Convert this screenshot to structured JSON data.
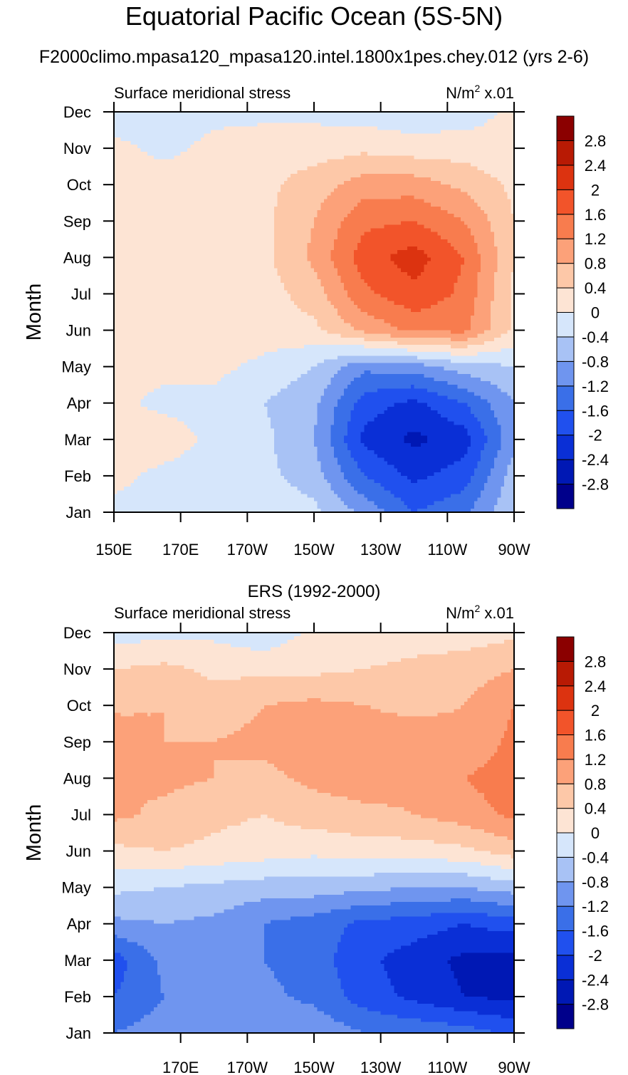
{
  "title": "Equatorial Pacific Ocean (5S-5N)",
  "subtitle": "F2000climo.mpasa120_mpasa120.intel.1800x1pes.chey.012 (yrs 2-6)",
  "chart_data": [
    {
      "type": "heatmap",
      "panel_title": "",
      "left_label": "Surface meridional stress",
      "right_label_prefix": "N/m",
      "right_label_sup": "2",
      "right_label_suffix": " x.01",
      "ylabel": "Month",
      "x_ticks": [
        "150E",
        "170E",
        "170W",
        "150W",
        "130W",
        "110W",
        "90W"
      ],
      "y_ticks": [
        "Jan",
        "Feb",
        "Mar",
        "Apr",
        "May",
        "Jun",
        "Jul",
        "Aug",
        "Sep",
        "Oct",
        "Nov",
        "Dec"
      ],
      "xlim_deg_east": [
        150,
        270
      ],
      "ylim_month": [
        1,
        12
      ],
      "grid_lon": [
        150,
        165,
        180,
        195,
        210,
        225,
        240,
        255,
        270
      ],
      "values": [
        [
          -0.1,
          -0.1,
          -0.2,
          -0.1,
          -0.3,
          -0.9,
          -1.6,
          -1.3,
          -0.4
        ],
        [
          0.1,
          -0.1,
          -0.2,
          -0.3,
          -0.6,
          -1.6,
          -2.1,
          -1.8,
          -0.6
        ],
        [
          0.2,
          0.2,
          -0.1,
          -0.3,
          -0.8,
          -2.1,
          -2.5,
          -2.2,
          -0.9
        ],
        [
          0.1,
          -0.1,
          -0.1,
          -0.4,
          -0.7,
          -1.8,
          -2.1,
          -1.6,
          -0.8
        ],
        [
          0.1,
          0.1,
          0.1,
          -0.1,
          -0.4,
          -1.1,
          -1.0,
          -0.6,
          -0.4
        ],
        [
          0.2,
          0.2,
          0.2,
          0.2,
          0.3,
          0.9,
          1.3,
          1.3,
          0.3
        ],
        [
          0.2,
          0.2,
          0.2,
          0.2,
          0.6,
          1.5,
          1.9,
          1.5,
          0.3
        ],
        [
          0.2,
          0.2,
          0.2,
          0.3,
          0.9,
          1.8,
          2.2,
          1.6,
          0.4
        ],
        [
          0.2,
          0.2,
          0.2,
          0.3,
          0.8,
          1.5,
          1.6,
          1.2,
          0.4
        ],
        [
          0.1,
          0.2,
          0.1,
          0.3,
          0.6,
          1.0,
          1.0,
          0.7,
          0.3
        ],
        [
          0.1,
          -0.1,
          0.1,
          0.2,
          0.2,
          0.3,
          0.2,
          0.2,
          0.1
        ],
        [
          -0.2,
          -0.2,
          -0.1,
          -0.1,
          -0.1,
          -0.2,
          -0.3,
          -0.2,
          0.1
        ]
      ],
      "levels": [
        -2.8,
        -2.4,
        -2,
        -1.6,
        -1.2,
        -0.8,
        -0.4,
        0,
        0.4,
        0.8,
        1.2,
        1.6,
        2,
        2.4,
        2.8
      ],
      "colorbar_labels": [
        "2.8",
        "2.4",
        "2",
        "1.6",
        "1.2",
        "0.8",
        "0.4",
        "0",
        "-0.4",
        "-0.8",
        "-1.2",
        "-1.6",
        "-2",
        "-2.4",
        "-2.8"
      ],
      "colors": [
        "#00008b",
        "#0018b4",
        "#0a2fd6",
        "#2050ee",
        "#3a6fe8",
        "#6f95ef",
        "#a8c2f5",
        "#d6e6fb",
        "#fde4d4",
        "#fdc8a8",
        "#fca179",
        "#f87c4e",
        "#f2542a",
        "#dc3310",
        "#b81a04",
        "#8b0000"
      ]
    },
    {
      "type": "heatmap",
      "panel_title": "ERS (1992-2000)",
      "left_label": "Surface meridional stress",
      "right_label_prefix": "N/m",
      "right_label_sup": "2",
      "right_label_suffix": " x.01",
      "ylabel": "Month",
      "x_ticks": [
        "170E",
        "170W",
        "150W",
        "130W",
        "110W",
        "90W"
      ],
      "y_ticks": [
        "Jan",
        "Feb",
        "Mar",
        "Apr",
        "May",
        "Jun",
        "Jul",
        "Aug",
        "Sep",
        "Oct",
        "Nov",
        "Dec"
      ],
      "xlim_deg_east": [
        150,
        270
      ],
      "ylim_month": [
        1,
        12
      ],
      "grid_lon": [
        150,
        165,
        180,
        195,
        210,
        225,
        240,
        255,
        270
      ],
      "values": [
        [
          -1.2,
          -1.0,
          -0.8,
          -0.9,
          -0.9,
          -1.2,
          -1.3,
          -1.4,
          -1.7
        ],
        [
          -1.6,
          -1.2,
          -1.1,
          -1.1,
          -1.3,
          -1.8,
          -2.1,
          -2.4,
          -2.5
        ],
        [
          -1.8,
          -1.1,
          -1.0,
          -1.2,
          -1.4,
          -1.9,
          -2.2,
          -2.5,
          -2.6
        ],
        [
          -0.9,
          -0.8,
          -0.9,
          -1.2,
          -1.4,
          -1.7,
          -1.8,
          -2.0,
          -1.8
        ],
        [
          -0.3,
          -0.4,
          -0.5,
          -0.6,
          -0.6,
          -0.7,
          -0.8,
          -0.8,
          -0.6
        ],
        [
          0.3,
          0.4,
          0.3,
          0.2,
          0.1,
          0.2,
          0.2,
          0.3,
          0.6
        ],
        [
          0.9,
          0.7,
          0.5,
          0.4,
          0.6,
          0.7,
          0.8,
          1.0,
          1.3
        ],
        [
          0.8,
          0.9,
          0.8,
          0.7,
          0.9,
          1.0,
          0.9,
          1.2,
          1.4
        ],
        [
          1.1,
          0.8,
          0.8,
          0.9,
          1.0,
          1.0,
          1.0,
          0.9,
          1.3
        ],
        [
          0.7,
          0.8,
          0.6,
          0.8,
          0.9,
          0.8,
          0.7,
          0.8,
          1.2
        ],
        [
          0.4,
          0.5,
          0.3,
          0.3,
          0.3,
          0.4,
          0.5,
          0.6,
          0.8
        ],
        [
          -0.2,
          -0.1,
          -0.1,
          -0.3,
          0.1,
          0.1,
          0.2,
          0.2,
          0.3
        ]
      ],
      "levels": [
        -2.8,
        -2.4,
        -2,
        -1.6,
        -1.2,
        -0.8,
        -0.4,
        0,
        0.4,
        0.8,
        1.2,
        1.6,
        2,
        2.4,
        2.8
      ],
      "colorbar_labels": [
        "2.8",
        "2.4",
        "2",
        "1.6",
        "1.2",
        "0.8",
        "0.4",
        "0",
        "-0.4",
        "-0.8",
        "-1.2",
        "-1.6",
        "-2",
        "-2.4",
        "-2.8"
      ],
      "colors": [
        "#00008b",
        "#0018b4",
        "#0a2fd6",
        "#2050ee",
        "#3a6fe8",
        "#6f95ef",
        "#a8c2f5",
        "#d6e6fb",
        "#fde4d4",
        "#fdc8a8",
        "#fca179",
        "#f87c4e",
        "#f2542a",
        "#dc3310",
        "#b81a04",
        "#8b0000"
      ]
    }
  ]
}
